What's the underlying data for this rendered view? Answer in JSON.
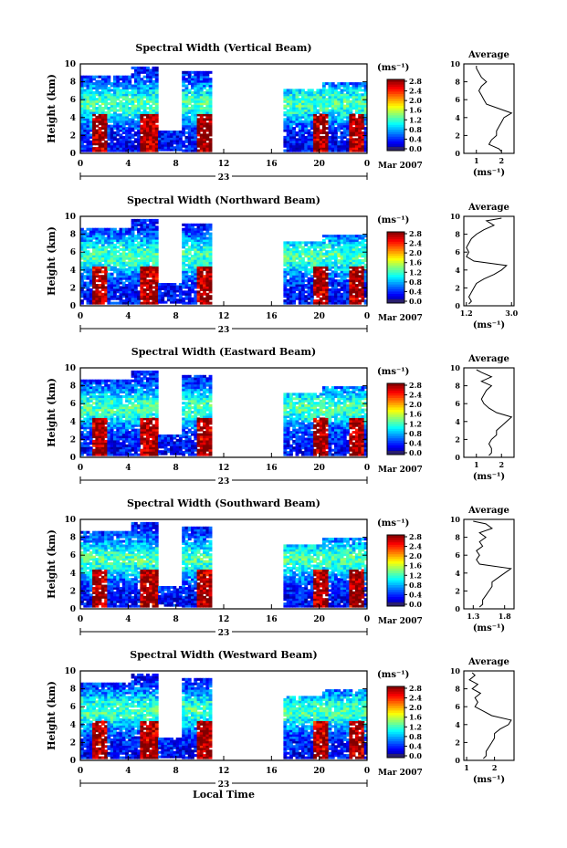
{
  "figure": {
    "x_ticks": [
      "0",
      "4",
      "8",
      "12",
      "16",
      "20",
      "0"
    ],
    "date_day": "23",
    "date_month": "Mar 2007",
    "x_label": "Local Time",
    "y_label": "Height (km)",
    "y_ticks": [
      "0",
      "2",
      "4",
      "6",
      "8",
      "10"
    ],
    "colorbar_unit": "(ms⁻¹)",
    "colorbar_ticks": [
      "0.0",
      "0.4",
      "0.8",
      "1.2",
      "1.6",
      "2.0",
      "2.4",
      "2.8"
    ],
    "average_title": "Average",
    "average_unit": "(ms⁻¹)"
  },
  "chart_data": [
    {
      "type": "heatmap",
      "title": "Spectral Width (Vertical Beam)",
      "ylabel": "Height (km)",
      "xlim": [
        0,
        24
      ],
      "ylim": [
        0,
        10
      ],
      "clim": [
        0.0,
        2.8
      ],
      "average": {
        "title": "Average",
        "xlabel": "(ms⁻¹)",
        "xlim": [
          0.5,
          2.5
        ],
        "xticks": [
          "1",
          "2"
        ],
        "height": [
          0.2,
          0.5,
          1.0,
          1.5,
          2.0,
          2.5,
          3.0,
          3.5,
          4.0,
          4.5,
          5.0,
          5.5,
          6.0,
          6.5,
          7.0,
          7.5,
          8.0,
          8.5,
          9.0,
          9.5,
          9.8
        ],
        "width": [
          2.0,
          1.9,
          1.5,
          1.6,
          1.8,
          1.8,
          1.9,
          2.0,
          2.1,
          2.4,
          1.9,
          1.4,
          1.3,
          1.2,
          1.1,
          1.2,
          1.4,
          1.2,
          1.1,
          1.0,
          1.0
        ]
      }
    },
    {
      "type": "heatmap",
      "title": "Spectral Width (Northward Beam)",
      "ylabel": "Height (km)",
      "xlim": [
        0,
        24
      ],
      "ylim": [
        0,
        10
      ],
      "clim": [
        0.0,
        2.8
      ],
      "average": {
        "title": "Average",
        "xlabel": "(ms⁻¹)",
        "xlim": [
          1.1,
          3.1
        ],
        "xticks": [
          "1.2",
          "3.0"
        ],
        "height": [
          0.2,
          0.5,
          1.0,
          1.5,
          2.0,
          2.5,
          3.0,
          3.5,
          4.0,
          4.5,
          5.0,
          5.5,
          6.0,
          6.5,
          7.0,
          7.5,
          8.0,
          8.5,
          9.0,
          9.5,
          9.8
        ],
        "width": [
          1.3,
          1.4,
          1.3,
          1.4,
          1.5,
          1.6,
          1.9,
          2.3,
          2.6,
          2.8,
          1.5,
          1.2,
          1.3,
          1.2,
          1.3,
          1.4,
          1.6,
          1.9,
          2.3,
          2.0,
          2.6
        ]
      }
    },
    {
      "type": "heatmap",
      "title": "Spectral Width (Eastward Beam)",
      "ylabel": "Height (km)",
      "xlim": [
        0,
        24
      ],
      "ylim": [
        0,
        10
      ],
      "clim": [
        0.0,
        2.8
      ],
      "average": {
        "title": "Average",
        "xlabel": "(ms⁻¹)",
        "xlim": [
          0.5,
          2.5
        ],
        "xticks": [
          "1",
          "2"
        ],
        "height": [
          0.2,
          0.5,
          1.0,
          1.5,
          2.0,
          2.5,
          3.0,
          3.5,
          4.0,
          4.5,
          5.0,
          5.5,
          6.0,
          6.5,
          7.0,
          7.5,
          8.0,
          8.5,
          9.0,
          9.5,
          9.8
        ],
        "width": [
          1.5,
          1.6,
          1.6,
          1.5,
          1.6,
          1.8,
          1.8,
          2.0,
          2.2,
          2.4,
          1.8,
          1.5,
          1.3,
          1.2,
          1.3,
          1.4,
          1.6,
          1.2,
          1.6,
          1.2,
          1.0
        ]
      }
    },
    {
      "type": "heatmap",
      "title": "Spectral Width (Southward Beam)",
      "ylabel": "Height (km)",
      "xlim": [
        0,
        24
      ],
      "ylim": [
        0,
        10
      ],
      "clim": [
        0.0,
        2.8
      ],
      "average": {
        "title": "Average",
        "xlabel": "(ms⁻¹)",
        "xlim": [
          1.15,
          1.95
        ],
        "xticks": [
          "1.3",
          "1.8"
        ],
        "height": [
          0.2,
          0.5,
          1.0,
          1.5,
          2.0,
          2.5,
          3.0,
          3.5,
          4.0,
          4.5,
          5.0,
          5.5,
          6.0,
          6.5,
          7.0,
          7.5,
          8.0,
          8.5,
          9.0,
          9.5,
          9.8
        ],
        "width": [
          1.4,
          1.45,
          1.45,
          1.5,
          1.55,
          1.6,
          1.6,
          1.7,
          1.8,
          1.9,
          1.4,
          1.35,
          1.4,
          1.35,
          1.45,
          1.4,
          1.5,
          1.4,
          1.6,
          1.5,
          1.3
        ]
      }
    },
    {
      "type": "heatmap",
      "title": "Spectral Width (Westward Beam)",
      "ylabel": "Height (km)",
      "xlim": [
        0,
        24
      ],
      "ylim": [
        0,
        10
      ],
      "clim": [
        0.0,
        2.8
      ],
      "xlabel": "Local Time",
      "average": {
        "title": "Average",
        "xlabel": "(ms⁻¹)",
        "xlim": [
          0.9,
          2.7
        ],
        "xticks": [
          "1",
          "2"
        ],
        "height": [
          0.2,
          0.5,
          1.0,
          1.5,
          2.0,
          2.5,
          3.0,
          3.5,
          4.0,
          4.5,
          5.0,
          5.5,
          6.0,
          6.5,
          7.0,
          7.5,
          8.0,
          8.5,
          9.0,
          9.5,
          9.8
        ],
        "width": [
          1.6,
          1.7,
          1.7,
          1.8,
          1.9,
          2.0,
          2.0,
          2.2,
          2.5,
          2.6,
          1.9,
          1.6,
          1.3,
          1.4,
          1.3,
          1.5,
          1.2,
          1.4,
          1.1,
          1.3,
          1.2
        ]
      }
    }
  ]
}
